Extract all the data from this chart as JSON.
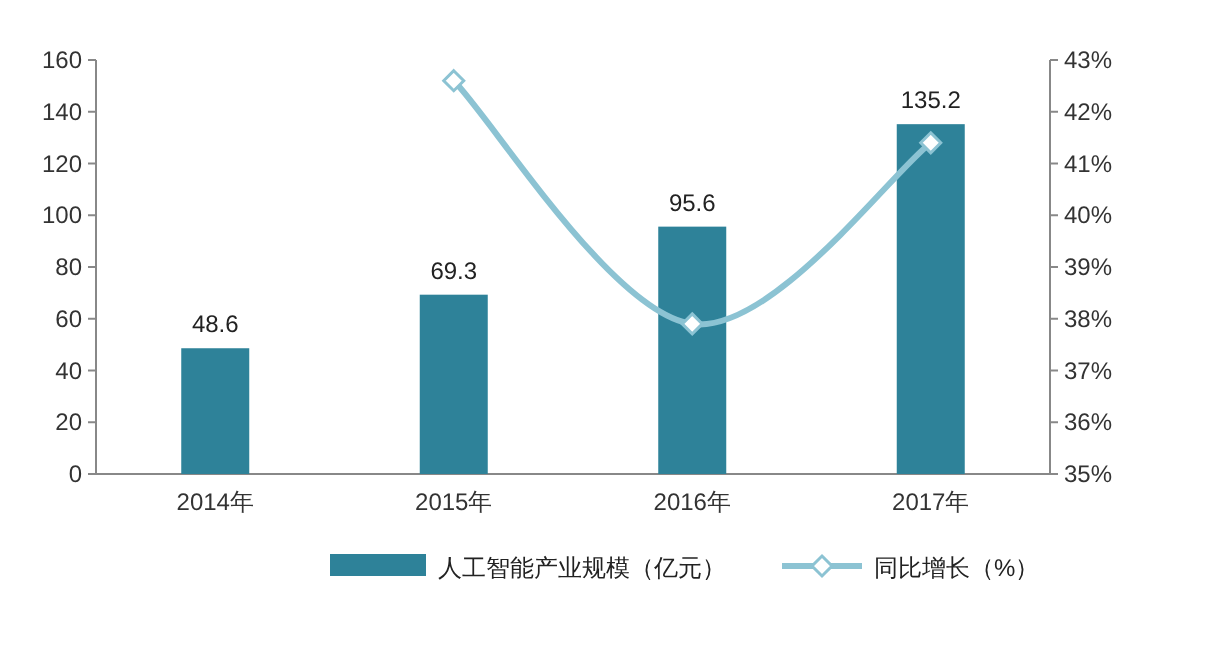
{
  "chart_data": {
    "type": "bar",
    "categories": [
      "2014年",
      "2015年",
      "2016年",
      "2017年"
    ],
    "series": [
      {
        "name": "人工智能产业规模（亿元）",
        "color": "#2e8299",
        "values": [
          48.6,
          69.3,
          95.6,
          135.2
        ],
        "value_labels": [
          "48.6",
          "69.3",
          "95.6",
          "135.2"
        ]
      },
      {
        "name": "同比增长（%）",
        "type": "line",
        "axis": "y2",
        "color": "#8cc3d3",
        "marker": "diamond",
        "values": [
          null,
          42.6,
          37.9,
          41.4
        ]
      }
    ],
    "ylim": [
      0,
      160
    ],
    "yticks": [
      0,
      20,
      40,
      60,
      80,
      100,
      120,
      140,
      160
    ],
    "y2lim": [
      35,
      43
    ],
    "y2ticks": [
      {
        "value": 35,
        "label": "35%"
      },
      {
        "value": 36,
        "label": "36%"
      },
      {
        "value": 37,
        "label": "37%"
      },
      {
        "value": 38,
        "label": "38%"
      },
      {
        "value": 39,
        "label": "39%"
      },
      {
        "value": 40,
        "label": "40%"
      },
      {
        "value": 41,
        "label": "41%"
      },
      {
        "value": 42,
        "label": "42%"
      },
      {
        "value": 43,
        "label": "43%"
      }
    ],
    "legend": "bottom"
  }
}
